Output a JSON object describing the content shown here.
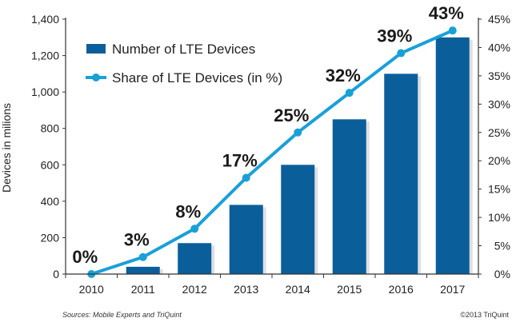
{
  "chart_data": {
    "type": "bar+line",
    "title": "",
    "categories": [
      "2010",
      "2011",
      "2012",
      "2013",
      "2014",
      "2015",
      "2016",
      "2017"
    ],
    "series": [
      {
        "name": "Number of LTE Devices",
        "type": "bar",
        "axis": "left",
        "color": "#0a5f9a",
        "values": [
          0,
          40,
          170,
          380,
          600,
          850,
          1100,
          1300
        ]
      },
      {
        "name": "Share of LTE Devices (in %)",
        "type": "line",
        "axis": "right",
        "color": "#1aa0d8",
        "values": [
          0,
          3,
          8,
          17,
          25,
          32,
          39,
          43
        ],
        "data_labels": [
          "0%",
          "3%",
          "8%",
          "17%",
          "25%",
          "32%",
          "39%",
          "43%"
        ]
      }
    ],
    "ylabel": "Devices in milions",
    "xlabel": "",
    "ylim": [
      0,
      1400
    ],
    "yticks": [
      "0",
      "200",
      "400",
      "600",
      "800",
      "1,000",
      "1,200",
      "1,400"
    ],
    "y2lim": [
      0,
      45
    ],
    "y2ticks": [
      "0%",
      "5%",
      "10%",
      "15%",
      "20%",
      "25%",
      "30%",
      "35%",
      "40%",
      "45%"
    ],
    "legend_position": "top-left",
    "grid": false
  },
  "footer": {
    "source": "Sources: Mobile Experts and TriQuint",
    "copyright": "©2013 TriQuint"
  }
}
